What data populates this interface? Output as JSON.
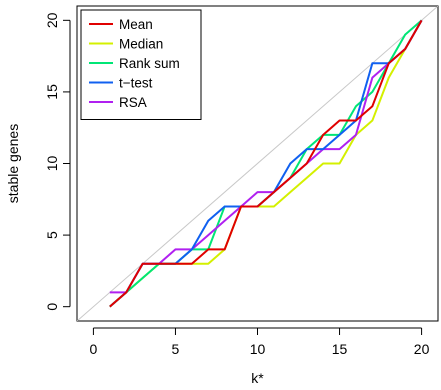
{
  "chart_data": {
    "type": "line",
    "title": "",
    "xlabel": "k*",
    "ylabel": "stable genes",
    "xlim": [
      -1,
      21
    ],
    "ylim": [
      -1,
      21
    ],
    "xticks": [
      0,
      5,
      10,
      15,
      20
    ],
    "yticks": [
      0,
      5,
      10,
      15,
      20
    ],
    "legend_position": "top-left",
    "reference_line": {
      "slope": 1,
      "intercept": 0,
      "color": "#c8c8c8"
    },
    "x": [
      1,
      2,
      3,
      4,
      5,
      6,
      7,
      8,
      9,
      10,
      11,
      12,
      13,
      14,
      15,
      16,
      17,
      18,
      19,
      20
    ],
    "series": [
      {
        "name": "Median",
        "color": "#d4f000",
        "values": [
          0,
          1,
          2,
          3,
          3,
          3,
          3,
          4,
          7,
          7,
          7,
          8,
          9,
          10,
          10,
          12,
          13,
          16,
          18,
          20
        ]
      },
      {
        "name": "Rank sum",
        "color": "#00e676",
        "values": [
          0,
          1,
          2,
          3,
          3,
          4,
          4,
          7,
          7,
          7,
          8,
          9,
          11,
          12,
          12,
          14,
          15,
          17,
          19,
          20
        ]
      },
      {
        "name": "RSA",
        "color": "#b020f0",
        "values": [
          1,
          1,
          3,
          3,
          4,
          4,
          5,
          6,
          7,
          8,
          8,
          9,
          10,
          11,
          11,
          12,
          16,
          17,
          18,
          20
        ]
      },
      {
        "name": "t−test",
        "color": "#1060f0",
        "values": [
          0,
          1,
          3,
          3,
          3,
          4,
          6,
          7,
          7,
          7,
          8,
          10,
          11,
          11,
          12,
          13,
          17,
          17,
          18,
          20
        ]
      },
      {
        "name": "Mean",
        "color": "#e00000",
        "values": [
          0,
          1,
          3,
          3,
          3,
          3,
          4,
          4,
          7,
          7,
          8,
          9,
          10,
          12,
          13,
          13,
          14,
          17,
          18,
          20
        ]
      }
    ],
    "legend_order": [
      "Mean",
      "Median",
      "Rank sum",
      "t−test",
      "RSA"
    ],
    "grid": false
  }
}
